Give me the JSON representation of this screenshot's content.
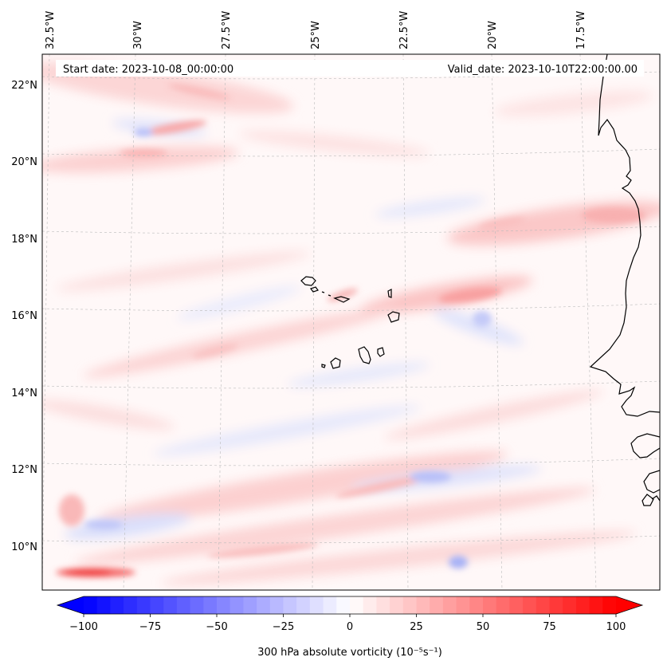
{
  "map": {
    "header": {
      "start": "Start date: 2023-10-08_00:00:00",
      "valid": "Valid_date: 2023-10-10T22:00:00.00"
    },
    "top_ticks": [
      "32.5°W",
      "30°W",
      "27.5°W",
      "25°W",
      "22.5°W",
      "20°W",
      "17.5°W"
    ],
    "left_ticks": [
      "22°N",
      "20°N",
      "18°N",
      "16°N",
      "14°N",
      "12°N",
      "10°N"
    ],
    "colorbar": {
      "label": "300 hPa absolute vorticity (10⁻⁵s⁻¹)",
      "tick_labels": [
        "−100",
        "−75",
        "−50",
        "−25",
        "0",
        "25",
        "50",
        "75",
        "100"
      ],
      "min": -100,
      "max": 100,
      "step": 5,
      "neg_color": "#0000ff",
      "pos_color": "#ff0000"
    },
    "features": [
      "Cape Verde islands",
      "West African coastline",
      "vorticity field"
    ]
  }
}
